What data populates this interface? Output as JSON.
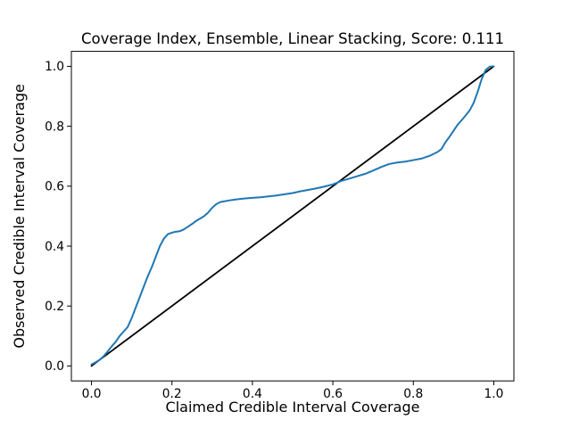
{
  "figure": {
    "background_color": "#ffffff",
    "frame_color": "#000000"
  },
  "chart_data": {
    "type": "line",
    "title": "Coverage Index, Ensemble, Linear Stacking, Score: 0.111",
    "xlabel": "Claimed Credible Interval Coverage",
    "ylabel": "Observed Credible Interval Coverage",
    "xlim": [
      -0.05,
      1.05
    ],
    "ylim": [
      -0.05,
      1.05
    ],
    "grid": false,
    "legend": "none",
    "xtick_values": [
      0.0,
      0.2,
      0.4,
      0.6,
      0.8,
      1.0
    ],
    "xtick_labels": [
      "0.0",
      "0.2",
      "0.4",
      "0.6",
      "0.8",
      "1.0"
    ],
    "ytick_values": [
      0.0,
      0.2,
      0.4,
      0.6,
      0.8,
      1.0
    ],
    "ytick_labels": [
      "0.0",
      "0.2",
      "0.4",
      "0.6",
      "0.8",
      "1.0"
    ],
    "series": [
      {
        "name": "identity-reference-line",
        "color": "#000000",
        "width": 1.8,
        "x": [
          0.0,
          1.0
        ],
        "y": [
          0.0,
          1.0
        ]
      },
      {
        "name": "observed-vs-claimed-coverage-curve",
        "color": "#1f77b4",
        "width": 2.0,
        "x": [
          0.0,
          0.01,
          0.02,
          0.03,
          0.04,
          0.05,
          0.06,
          0.07,
          0.08,
          0.09,
          0.1,
          0.11,
          0.12,
          0.13,
          0.14,
          0.15,
          0.16,
          0.17,
          0.18,
          0.19,
          0.2,
          0.21,
          0.22,
          0.23,
          0.24,
          0.25,
          0.26,
          0.27,
          0.28,
          0.29,
          0.3,
          0.31,
          0.32,
          0.34,
          0.36,
          0.38,
          0.4,
          0.42,
          0.44,
          0.46,
          0.48,
          0.5,
          0.52,
          0.54,
          0.56,
          0.58,
          0.6,
          0.62,
          0.64,
          0.66,
          0.68,
          0.7,
          0.72,
          0.74,
          0.76,
          0.78,
          0.8,
          0.82,
          0.84,
          0.86,
          0.87,
          0.88,
          0.89,
          0.9,
          0.91,
          0.92,
          0.93,
          0.94,
          0.95,
          0.96,
          0.97,
          0.98,
          0.99,
          1.0
        ],
        "y": [
          0.005,
          0.012,
          0.02,
          0.032,
          0.048,
          0.065,
          0.08,
          0.1,
          0.115,
          0.13,
          0.16,
          0.195,
          0.23,
          0.265,
          0.3,
          0.33,
          0.365,
          0.4,
          0.425,
          0.44,
          0.445,
          0.448,
          0.45,
          0.456,
          0.465,
          0.474,
          0.484,
          0.492,
          0.5,
          0.512,
          0.528,
          0.54,
          0.547,
          0.552,
          0.556,
          0.559,
          0.561,
          0.563,
          0.566,
          0.569,
          0.573,
          0.577,
          0.583,
          0.588,
          0.593,
          0.599,
          0.606,
          0.617,
          0.625,
          0.633,
          0.641,
          0.652,
          0.664,
          0.674,
          0.679,
          0.682,
          0.687,
          0.692,
          0.701,
          0.714,
          0.724,
          0.747,
          0.765,
          0.785,
          0.805,
          0.82,
          0.836,
          0.853,
          0.878,
          0.915,
          0.958,
          0.988,
          0.999,
          1.0
        ]
      }
    ]
  }
}
